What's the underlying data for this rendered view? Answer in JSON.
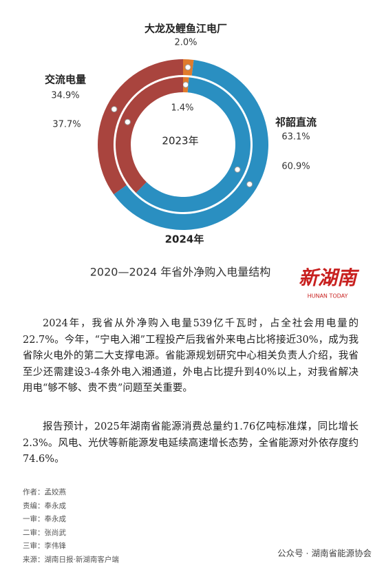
{
  "chart_data": {
    "type": "donut",
    "title": "2020—2024 年省外净购入电量结构",
    "categories": [
      "大龙及鲤鱼江电厂",
      "祁韶直流",
      "交流电量"
    ],
    "colors": [
      "#e07b2c",
      "#2a8fc1",
      "#a9443e"
    ],
    "series": [
      {
        "name": "2024年",
        "values": [
          2.0,
          63.1,
          34.9
        ],
        "value_labels": [
          "2.0%",
          "63.1%",
          "34.9%"
        ]
      },
      {
        "name": "2023年",
        "values": [
          1.4,
          60.9,
          37.7
        ],
        "value_labels": [
          "1.4%",
          "60.9%",
          "37.7%"
        ]
      }
    ]
  },
  "logo": {
    "title": "新湖南",
    "subtitle": "HUNAN TODAY"
  },
  "article": {
    "paragraphs": [
      "2024年，我省从外净购入电量539亿千瓦时，占全社会用电量的22.7%。今年，“宁电入湘”工程投产后我省外来电占比将接近30%，成为我省除火电外的第二大支撑电源。省能源规划研究中心相关负责人介绍，我省至少还需建设3-4条外电入湘通道，外电占比提升到40%以上，对我省解决用电“够不够、贵不贵”问题至关重要。",
      "报告预计，2025年湖南省能源消费总量约1.76亿吨标准煤，同比增长2.3%。风电、光伏等新能源发电延续高速增长态势，全省能源对外依存度约74.6%。"
    ],
    "credits": [
      "作者：孟姣燕",
      "责编：奉永成",
      "一审：奉永成",
      "二审：张尚武",
      "三审：李伟锋",
      "来源：湖南日报·新湖南客户端"
    ]
  },
  "watermark": "公众号 · 湖南省能源协会"
}
